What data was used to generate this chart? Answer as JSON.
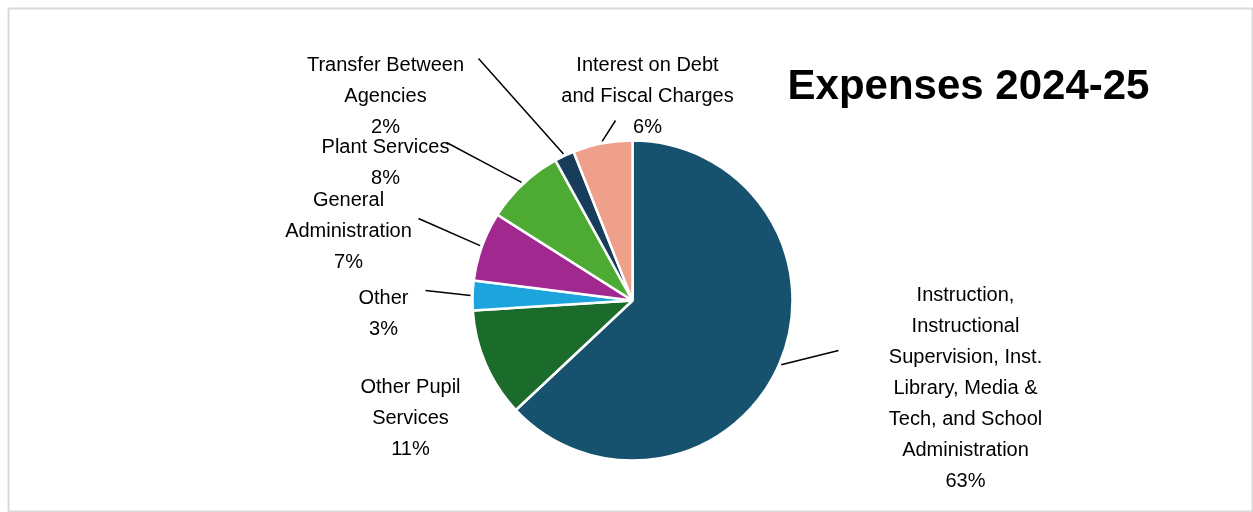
{
  "chart_data": {
    "type": "pie",
    "title": "Expenses 2024-25",
    "categories": [
      "Instruction, Instructional Supervision, Inst. Library, Media & Tech, and School Administration",
      "Other Pupil Services",
      "Other",
      "General Administration",
      "Plant Services",
      "Transfer Between Agencies",
      "Interest on Debt and Fiscal Charges"
    ],
    "values": [
      63,
      11,
      3,
      7,
      8,
      2,
      6
    ],
    "value_labels": [
      "63%",
      "11%",
      "3%",
      "7%",
      "8%",
      "2%",
      "6%"
    ],
    "colors": [
      "#16526e",
      "#1b6b2a",
      "#1ea4dc",
      "#a0288f",
      "#4daa32",
      "#173d5a",
      "#eea08a"
    ],
    "legend": false
  }
}
